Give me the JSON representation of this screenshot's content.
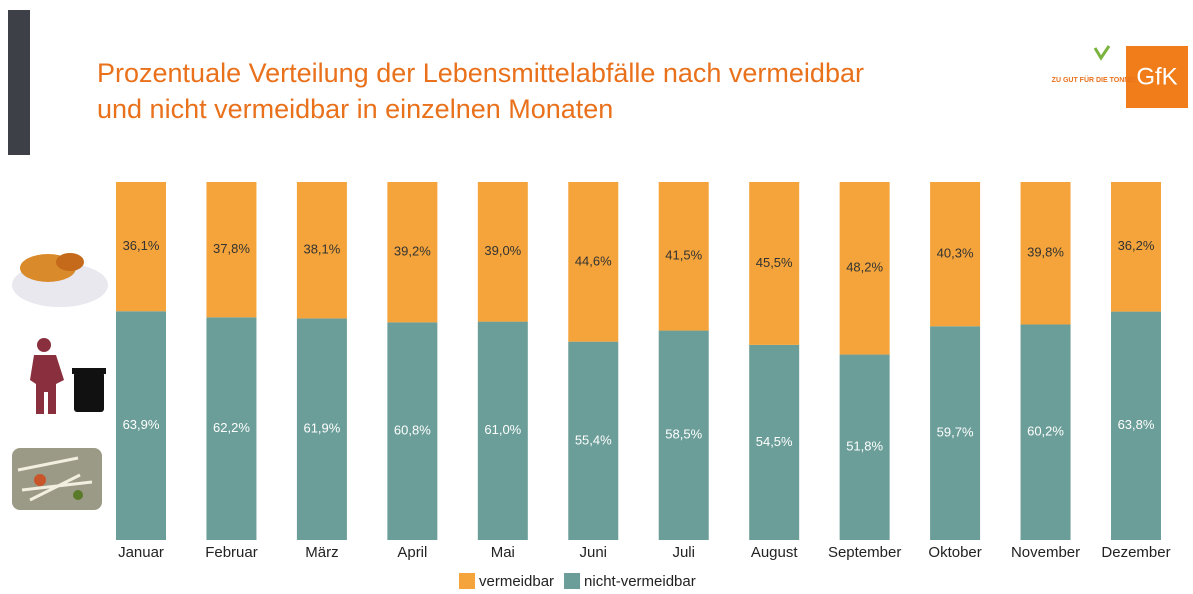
{
  "chart_data": {
    "type": "stacked_bar",
    "title_lines": [
      "Prozentuale Verteilung der Lebensmittelabfälle nach vermeidbar",
      "und nicht vermeidbar in einzelnen Monaten"
    ],
    "logos": {
      "gfk": "GfK",
      "campaign": "ZU GUT FÜR DIE TONNE!"
    },
    "categories": [
      "Januar",
      "Februar",
      "März",
      "April",
      "Mai",
      "Juni",
      "Juli",
      "August",
      "September",
      "Oktober",
      "November",
      "Dezember"
    ],
    "series": [
      {
        "name": "nicht-vermeidbar",
        "color": "#6b9e98",
        "values": [
          63.9,
          62.2,
          61.9,
          60.8,
          61.0,
          55.4,
          58.5,
          54.5,
          51.8,
          59.7,
          60.2,
          63.8
        ],
        "value_labels": [
          "63,9%",
          "62,2%",
          "61,9%",
          "60,8%",
          "61,0%",
          "55,4%",
          "58,5%",
          "54,5%",
          "51,8%",
          "59,7%",
          "60,2%",
          "63,8%"
        ]
      },
      {
        "name": "vermeidbar",
        "color": "#f4a43a",
        "values": [
          36.1,
          37.8,
          38.1,
          39.2,
          39.0,
          44.6,
          41.5,
          45.5,
          48.2,
          40.3,
          39.8,
          36.2
        ],
        "value_labels": [
          "36,1%",
          "37,8%",
          "38,1%",
          "39,2%",
          "39,0%",
          "44,6%",
          "41,5%",
          "45,5%",
          "48,2%",
          "40,3%",
          "39,8%",
          "36,2%"
        ]
      }
    ]
  }
}
